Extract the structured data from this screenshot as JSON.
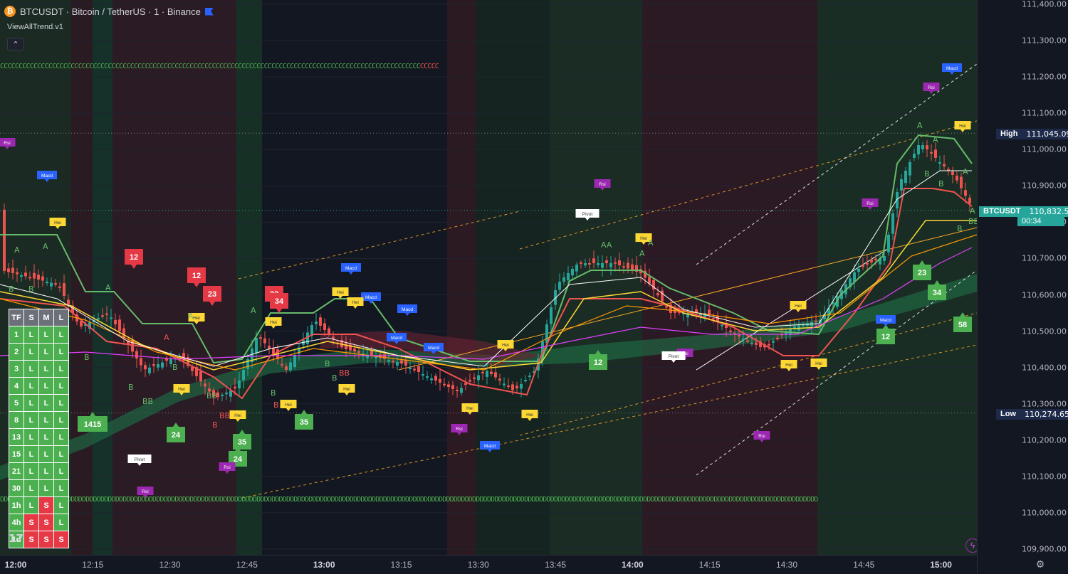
{
  "header": {
    "symbol_icon": "bitcoin-icon",
    "symbol_glyph": "₿",
    "title": "BTCUSDT · Bitcoin / TetherUS · 1 · Binance",
    "indicator": "ViewAllTrend.v1",
    "collapse_glyph": "⌃"
  },
  "price_axis": {
    "ticks": [
      "111,400.00",
      "111,300.00",
      "111,200.00",
      "111,100.00",
      "111,000.00",
      "110,900.00",
      "110,800.00",
      "110,700.00",
      "110,600.00",
      "110,500.00",
      "110,400.00",
      "110,300.00",
      "110,200.00",
      "110,100.00",
      "110,000.00",
      "109,900.00"
    ],
    "high": {
      "tag": "High",
      "value": "111,045.09"
    },
    "current": {
      "tag": "BTCUSDT",
      "value": "110,832.53",
      "countdown": "00:34"
    },
    "low": {
      "tag": "Low",
      "value": "110,274.65"
    }
  },
  "time_axis": {
    "ticks": [
      {
        "label": "12:00",
        "major": true
      },
      {
        "label": "12:15",
        "major": false
      },
      {
        "label": "12:30",
        "major": false
      },
      {
        "label": "12:45",
        "major": false
      },
      {
        "label": "13:00",
        "major": true
      },
      {
        "label": "13:15",
        "major": false
      },
      {
        "label": "13:30",
        "major": false
      },
      {
        "label": "13:45",
        "major": false
      },
      {
        "label": "14:00",
        "major": true
      },
      {
        "label": "14:15",
        "major": false
      },
      {
        "label": "14:30",
        "major": false
      },
      {
        "label": "14:45",
        "major": false
      },
      {
        "label": "15:00",
        "major": true
      }
    ]
  },
  "marker_rows": {
    "top_green": "CCCCCCCCCCCCCCCCCCCCCCCCCCCCCCCCCCCCCCCCCCCCCCCCCCCCCCCCCCCCCCCCCCCCCCCCCCCCCCCCCCCCCCCCCCCCCCCCCCCCCCCCCCCCCCCCC",
    "top_red": "CCCCC",
    "bottom_green": "DDDDDDDDDDDDDDDDDDDDDDDDDDDDDDDDDDDDDDDDDDDDDDDDDDDDDDDDDDDDDDDDDDDDDDDDDDDDDDDDDDDDDDDDDDDDDDDDDDDDDDDDDDDDDDDDDDDDDDDDDDDDDDDDDDDDDDDDDDDDDDDDDDDDDDDDDDDDDDDDDDDDDDDDDDDDDDDDDDDDDDDDDDDDDDDDDDDDDDDDDDDDDDDDDDDDDDDDDDDD"
  },
  "trend_table": {
    "headers": [
      "TF",
      "S",
      "M",
      "L"
    ],
    "rows": [
      {
        "tf": "1",
        "s": "L",
        "m": "L",
        "l": "L"
      },
      {
        "tf": "2",
        "s": "L",
        "m": "L",
        "l": "L"
      },
      {
        "tf": "3",
        "s": "L",
        "m": "L",
        "l": "L"
      },
      {
        "tf": "4",
        "s": "L",
        "m": "L",
        "l": "L"
      },
      {
        "tf": "5",
        "s": "L",
        "m": "L",
        "l": "L"
      },
      {
        "tf": "8",
        "s": "L",
        "m": "L",
        "l": "L"
      },
      {
        "tf": "13",
        "s": "L",
        "m": "L",
        "l": "L"
      },
      {
        "tf": "15",
        "s": "L",
        "m": "L",
        "l": "L"
      },
      {
        "tf": "21",
        "s": "L",
        "m": "L",
        "l": "L"
      },
      {
        "tf": "30",
        "s": "L",
        "m": "L",
        "l": "L"
      },
      {
        "tf": "1h",
        "s": "L",
        "m": "S",
        "l": "L"
      },
      {
        "tf": "4h",
        "s": "S",
        "m": "S",
        "l": "L"
      },
      {
        "tf": "1d",
        "s": "S",
        "m": "S",
        "l": "S"
      }
    ]
  },
  "signals": [
    {
      "text": "12",
      "kind": "bear-num"
    },
    {
      "text": "12",
      "kind": "bear-num"
    },
    {
      "text": "23",
      "kind": "bear-num"
    },
    {
      "text": "33",
      "kind": "bear-num"
    },
    {
      "text": "34",
      "kind": "bear-num"
    },
    {
      "text": "1415",
      "kind": "bull-num"
    },
    {
      "text": "24",
      "kind": "bull-num"
    },
    {
      "text": "35",
      "kind": "bull-num"
    },
    {
      "text": "24",
      "kind": "bull-num"
    },
    {
      "text": "35",
      "kind": "bull-num"
    },
    {
      "text": "12",
      "kind": "bull-num"
    },
    {
      "text": "23",
      "kind": "bull-num"
    },
    {
      "text": "34",
      "kind": "bull-num"
    },
    {
      "text": "58",
      "kind": "bull-num"
    },
    {
      "text": "12",
      "kind": "bull-num"
    },
    {
      "text": "Rsi",
      "kind": "rsi"
    },
    {
      "text": "Macd",
      "kind": "macd"
    },
    {
      "text": "Hei",
      "kind": "hei"
    },
    {
      "text": "Pivot",
      "kind": "pivot"
    }
  ],
  "colors": {
    "bull": "#26a69a",
    "bear": "#ef5350",
    "signal_green": "#4caf50",
    "signal_red": "#e53945",
    "macd": "#2962ff",
    "rsi": "#9c27b0",
    "hei": "#fdd835"
  },
  "icons": {
    "lightning": "lightning-icon",
    "settings": "settings-icon",
    "logo": "tradingview-logo"
  }
}
